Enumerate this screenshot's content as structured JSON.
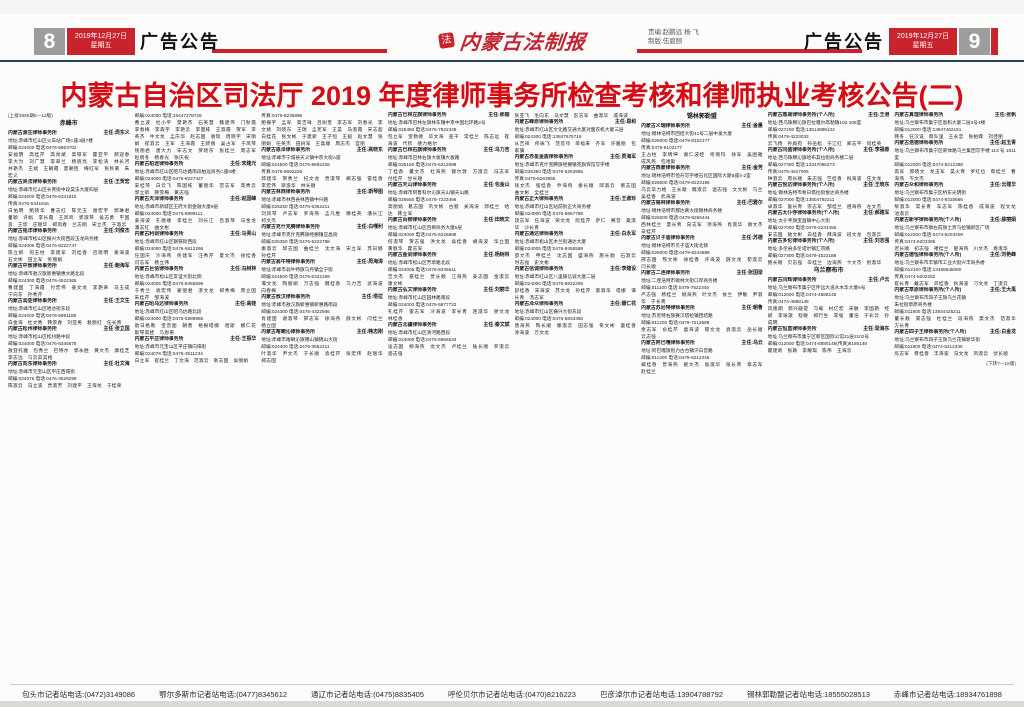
{
  "header": {
    "page_left": "8",
    "page_right": "9",
    "date_line1": "2019年12月27日",
    "date_line2": "星期五",
    "section_left": "广告公告",
    "section_right": "广告公告",
    "masthead": "内蒙古法制报",
    "seal_glyph": "法",
    "credit_line1": "责编:赵鹏远  杨  飞",
    "credit_line2": "制版:伍碧颐",
    "accent_red": "#c9232d",
    "rule_navy": "#21415f"
  },
  "title": "内蒙古自治区司法厅 2019 年度律师事务所检查考核和律师执业考核公告(二)",
  "body": {
    "columns": [
      {
        "blocks": [
          {
            "type": "note",
            "text": "(上接3866期5—12版)"
          },
          {
            "type": "city",
            "text": "赤峰市"
          },
          {
            "type": "firm",
            "name": "内蒙古源生律师事务所",
            "director": "主任:周东义",
            "lines": [
              "地址:赤峰市红山区火车站广场C座4层7楼",
              "邮编:024000  电话:0476-5853702"
            ],
            "names": "安福明 高桂芹 高尚斌 高铁军 霍亚平 郝迎春 李大为 刘广慧 李翠兰 杨晓亮 李松涛 林长河 井艳杰 王斌 王朝霞 夏朝臣 梅红军 张秋菊 朱宏义"
          },
          {
            "type": "firm",
            "name": "内蒙古昊法律师事务所",
            "director": "主任:王贺宏",
            "lines": [
              "地址:赤峰市红山区长青街中段昊法大厦四层",
              "邮编:024000  电话:0476-5341816",
              "传真:0476-5341816"
            ],
            "names": "白佑明 鲍晓华 曹志红 陈元玉 谢宏宇 郭琳君 董颖 许娟 李长霞 王凤鸣 郭淑琴 侯志勇 平国良 王欣 庄丽华 郑凤春 兰志刚 宋立杰 于淑云"
          },
          {
            "type": "firm",
            "name": "内蒙古铭洋律师事务所",
            "director": "主任:刘俊杰",
            "lines": [
              "地址:赤峰市松山区振兴大街西段玉龙商务楼",
              "邮编:024005  电话:0476-8222747"
            ],
            "names": "陈立新 何玉柱 李建军 刘桂香 吕晓明 秦海波 石文彬 田立军 佟丽娟"
          },
          {
            "type": "firm",
            "name": "内蒙古中敖律师事务所",
            "director": "主任:鲍海军",
            "lines": [
              "地址:赤峰市敖汉旗新惠镇惠文路北段",
              "邮编:024300  电话:0476-4522365"
            ],
            "names": "曹建国 丁海霞 付宏伟 姜文龙 李艳荣 马玉成 宁向东 孙秀芹"
          },
          {
            "type": "firm",
            "name": "内蒙古润亚律师事务所",
            "director": "主任:王文生",
            "lines": [
              "地址:赤峰市红山区哈达街东段",
              "邮编:024000  电话:0476-5891188"
            ],
            "names": "白金海 杜文秀 韩景春 刘亚男 裴丽红 任长青"
          },
          {
            "type": "firm",
            "name": "内蒙古松州律师事务所",
            "director": "主任:张立国",
            "lines": [
              "地址:赤峰市松山区松州路中段",
              "邮编:024000  电话:0476-8345678"
            ],
            "names": "敖登托雅 包秀兰 巴特尔 郭永胜 黄文杰 康桂芝 李志远 乌云其其格"
          },
          {
            "type": "firm",
            "name": "内蒙古向东律师事务所",
            "director": "主任:杜文海",
            "lines": [
              "地址:赤峰市元宝山区平庄西城街",
              "邮编:024076  电话:0476-3529299"
            ],
            "names": "陈淑云 冯立波 贾淑芳 刘建平 王海龙 于桂荣"
          }
        ]
      },
      {
        "blocks": [
          {
            "type": "firm",
            "name": "",
            "director": "",
            "lines": [
              "邮编:024000  电话:15447278729"
            ],
            "names": "曹立波 杜小平 樊艳杰 石英慧 魏建伟 门秋霞 李春梅 李森宇 李艳云 李国栋 王淑霞 贺军 李英杰 牛文龙 孟庆华 赵志国 谢琰 周晓宇 宋丽娟 崔淑云 王军 王海霞 王晓丽 吴占军 于凤琴 钱丽君 唐大力 宋志文 贺晓东 张桂兰 周志军 赵晓冬 杨春光 张庆祝"
          },
          {
            "type": "firm",
            "name": "内蒙古柏远律师事务所",
            "director": "主任:宋建元",
            "lines": [
              "地址:赤峰市红山区昭乌达路南段柏远商务C座6楼",
              "邮编:024000  电话:0476-8227427"
            ],
            "names": "安桂琴 白云飞 陈国栋 董丽华 范志军 高秀云 郭立新 韩雪梅 黄志强"
          },
          {
            "type": "firm",
            "name": "内蒙古天泽律师事务所",
            "director": "主任:赵国峰",
            "lines": [
              "地址:赤峰市新城区王府大街金融大厦9层",
              "邮编:024000  电话:0476-8899111"
            ],
            "names": "姜海波 孔德顺 李桂兰 刘长江 吕淑琴 马金龙 潘志红 曲文彬"
          },
          {
            "type": "firm",
            "name": "内蒙古利剑律师事务所",
            "director": "主任:马青山",
            "lines": [
              "地址:赤峰市红山区钢铁街西段",
              "邮编:024000  电话:0476-5812266"
            ],
            "names": "任国庆 沙海燕 佟建军 汪秀芹 夏文杰 徐桂香 闫志军 杨立伟"
          },
          {
            "type": "firm",
            "name": "内蒙古巨信律师事务所",
            "director": "主任:冯树林",
            "lines": [
              "地址:赤峰市松山区友谊大街北侧",
              "邮编:024005  电话:0476-8455599"
            ],
            "names": "于秀兰 袁宏伟 翟丽君 湛文龙 郑秀梅 周立国 朱桂芹 邹海波"
          },
          {
            "type": "firm",
            "name": "内蒙古昭乌达律师事务所",
            "director": "主任:高娃",
            "lines": [
              "地址:赤峰市红山区昭乌达路北段",
              "邮编:024000  电话:0476-5889966"
            ],
            "names": "敖日格勒 宝音图 朝鲁 格根塔娜 哈斯 娜仁花 斯琴高娃 乌恩奇"
          },
          {
            "type": "firm",
            "name": "内蒙古平庄律师事务所",
            "director": "主任:王振华",
            "lines": [
              "地址:赤峰市元宝山区平庄镇向阳街",
              "邮编:024076  电话:0476-3511234"
            ],
            "names": "白立军 崔桂兰 丁文海 范淑云 耿志国 侯丽娟"
          }
        ]
      },
      {
        "blocks": [
          {
            "type": "firm",
            "name": "",
            "director": "",
            "lines": [
              "传真:0476-8235896"
            ],
            "names": "鲍振宇 孟军 高吉祥 吕树奎 李志军 刘春光 李文斌 刘晓东 王瑞 孟宪军 王昊 马淑霞 宋志超 白桂花 张文彬 于建新 王子恒 王毅 赵文慧 张丽娟 任英杰 田树军 王喜顺 周志杰 宫丽"
          },
          {
            "type": "firm",
            "name": "内蒙古恩泽律师事务所",
            "director": "主任:高晓东",
            "lines": [
              "地址:赤峰市宁城县天义镇中京大街A座",
              "邮编:024500  电话:0476-8692226",
              "传真:0476-8692226"
            ],
            "names": "郭建华 贺秀兰 纪文龙 贾淑琴 阚志强 雷桂香 李宏伟 梁淑华 林长顺"
          },
          {
            "type": "firm",
            "name": "内蒙古林西律师事务所",
            "director": "主任:斯琴图",
            "lines": [
              "地址:赤峰市林西县林西镇中兴路",
              "邮编:025250  电话:0476-5362211"
            ],
            "names": "刘凤琴 卢志军 罗海燕 孟凡胜 穆桂英 潘长江 祁文杰"
          },
          {
            "type": "firm",
            "name": "内蒙古克什克腾律师事务所",
            "director": "主任:白嘎利",
            "lines": [
              "地址:赤峰市克什克腾旗经棚镇应昌街",
              "邮编:025350  电话:0476-5222788"
            ],
            "names": "秦淑云 邱志国 曲桂兰 沈文海 宋立军 苏日娜 孙桂芹"
          },
          {
            "type": "firm",
            "name": "内蒙古翁牛特律师事务所",
            "director": "主任:周海涛",
            "lines": [
              "地址:赤峰市翁牛特旗乌丹镇全宁街",
              "邮编:024500  电话:0476-6322199"
            ],
            "names": "谭文龙 陶丽娟 万志强 魏桂香 乌力吉 武海波 向春梅"
          },
          {
            "type": "firm",
            "name": "内蒙古敖汉律师事务所",
            "director": "主任:塔拉",
            "lines": [
              "地址:赤峰市敖汉旗新惠镇新惠路南段",
              "邮编:024300  电话:0476-4322566"
            ],
            "names": "肖建国 谢淑琴 邢志军 徐海燕 薛文彬 闫桂兰 杨立国"
          },
          {
            "type": "firm",
            "name": "内蒙古喀喇沁律师事务所",
            "director": "主任:韩志刚",
            "lines": [
              "地址:赤峰市喀喇沁旗锦山镇锦山大街",
              "邮编:024400  电话:0476-3552211"
            ],
            "names": "叶淑华 尹文杰 于长顺 袁桂芹 张宏伟 赵丽华 郑志国"
          }
        ]
      },
      {
        "blocks": [
          {
            "type": "firm",
            "name": "内蒙古巴林左旗律师事务所",
            "director": "主任:那顺",
            "lines": [
              "地址:赤峰市巴林左旗林东镇中京中国北环路2号",
              "邮编:025450  电话:0476-7822345"
            ],
            "names": "包立军 宝勒德 毕文海 查干 常桂兰 陈志远 崔海波 代钦 德力格尔"
          },
          {
            "type": "firm",
            "name": "内蒙古巴林右旗律师事务所",
            "director": "主任:乌力吉",
            "lines": [
              "地址:赤峰市巴林右旗大板镇大板路",
              "邮编:025150  电话:0476-6212688"
            ],
            "names": "丁桂香 董文杰 杜海燕 额尔敦 方淑云 冯志军 付桂芹 甘长顺"
          },
          {
            "type": "firm",
            "name": "内蒙古天山律师事务所",
            "director": "主任:包金山",
            "lines": [
              "地址:赤峰市阿鲁科尔沁旗天山镇天山路",
              "邮编:025550  电话:0476-7222456"
            ],
            "names": "高丽娟 葛志国 巩文彬 古丽 关海涛 郭桂兰 哈达 韩立军"
          },
          {
            "type": "firm",
            "name": "内蒙古百柳律师事务所",
            "director": "主任:田晓文",
            "lines": [
              "地址:赤峰市红山区百柳商务大厦5层",
              "邮编:024000  电话:0476-5226888"
            ],
            "names": "何淑琴 贺志强 洪文龙 侯桂香 胡海波 华立国 黄丽华 霍志军"
          },
          {
            "type": "firm",
            "name": "内蒙古金剑律师事务所",
            "director": "主任:杨树林",
            "lines": [
              "地址:赤峰市松山区芳草路北段",
              "邮编:024005  电话:0476-8336611"
            ],
            "names": "吉文杰 嘉桂兰 贾长顺 江海燕 姜志国 金淑云 康文彬"
          },
          {
            "type": "firm",
            "name": "内蒙古弘文律师事务所",
            "director": "主任:刘丽华",
            "lines": [
              "地址:赤峰市红山区园林路南段",
              "邮编:024000  电话:0476-5877722"
            ],
            "names": "孔桂芹 雷志军 冷海波 李长青 连淑华 廖文龙 林桂香"
          },
          {
            "type": "firm",
            "name": "内蒙古北疆律师事务所",
            "director": "主任:秦文斌",
            "lines": [
              "地址:赤峰市红山区清河路西段",
              "邮编:024000  电话:0476-5866633"
            ],
            "names": "凌志国 柳海燕 龙文杰 卢桂兰 陆长顺 罗淑云 骆志强"
          }
        ]
      },
      {
        "blocks": [
          {
            "type": "firm",
            "name": "",
            "director": "",
            "lines": [],
            "names": "张亚飞 毛向东 马文慧 彭志军 曲淑华 戚海波"
          },
          {
            "type": "firm",
            "name": "内蒙古峰原律师事务所",
            "director": "主任:恩和",
            "lines": [
              "地址:赤峰市红山区文化路交通大厦对面农机大厦三层",
              "邮编:024300  电话:13847676716"
            ],
            "names": "从吉祥 佟咏飞 范菩제 单福来 齐军 许雅丽 包家骥"
          },
          {
            "type": "firm",
            "name": "内蒙古赤星金盾律师事务所",
            "director": "主任:贾海军",
            "lines": [
              "地址:赤峰市克什克腾旗经棚镇克旗宾馆写字楼",
              "邮编:025350  电话:0476-5263955",
              "传真:0476-5263955"
            ],
            "names": "钱文杰 强桂香 乔海燕 秦长顺 邱淑云 裘志国 曲文彬 全桂兰"
          },
          {
            "type": "firm",
            "name": "内蒙古正大律师事务所",
            "director": "主任:王淑珍",
            "lines": [
              "地址:赤峰市红山区站前街正大商务楼",
              "邮编:024000  电话:0476-5867788"
            ],
            "names": "饶志军 任海波 荣文龙 阮桂芹 萨仁 赛音 桑淑华 沙长青"
          },
          {
            "type": "firm",
            "name": "内蒙古通达律师事务所",
            "director": "主任:白永军",
            "lines": [
              "地址:赤峰市松山区木兰街通达大厦",
              "邮编:024005  电话:0476-8455588"
            ],
            "names": "邵文杰 申桂兰 沈志国 盛海燕 施长顺 石淑云 时志强 史文彬"
          },
          {
            "type": "firm",
            "name": "内蒙古信诚律师事务所",
            "director": "主任:李建设",
            "lines": [
              "地址:赤峰市红山区八里铺信诚大厦二层",
              "邮编:024000  电话:0476-5822299"
            ],
            "names": "舒桂香 宋海波 苏文龙 孙桂芹 索淑华 塔娜 谭长青 汤志军"
          },
          {
            "type": "firm",
            "name": "内蒙古泽众律师事务所",
            "director": "主任:娜仁花",
            "lines": [
              "地址:赤峰市红山区振兴大街东段",
              "邮编:024000  电话:0476-5833366"
            ],
            "names": "唐海燕 陶长顺 滕淑云 田志强 佟文彬 童桂香 涂海波 万文龙"
          }
        ]
      },
      {
        "blocks": [
          {
            "type": "city",
            "text": "锡林郭勒盟"
          },
          {
            "type": "firm",
            "name": "内蒙古义瑞律师事务所",
            "director": "主任:金惠",
            "lines": [
              "地址:锡林浩特市团结大街41号二层中发大厦",
              "邮编:026000  电话:0479-8102177",
              "传真:0479-8102177"
            ],
            "names": "王占柱 李炳坤 谢仁波娃 佟丽玛 徐军 吴图雅 成风燕 包哈斯"
          },
          {
            "type": "firm",
            "name": "内蒙古西蒙律师事务所",
            "director": "主任:金芳",
            "lines": [
              "地址:锡林浩特市恒升写字楼石化区国际大厦B座4-2室",
              "邮编:026000  电话:0479-8223186"
            ],
            "names": "乌云毕力格 王长顺 魏淑云 温志强 文文彬 乌兰 吴桂香 武海波"
          },
          {
            "type": "firm",
            "name": "内蒙古锡林律师事务所",
            "director": "主任:巴雅尔",
            "lines": [
              "地址:锡林浩特市那达慕大街锡林商务楼",
              "邮编:026000  电话:0479-8266444"
            ],
            "names": "西林桂兰 夏长青 向志军 项海燕 肖淑华 谢文杰 辛桂芹"
          },
          {
            "type": "firm",
            "name": "内蒙古贝子庙律师事务所",
            "director": "主任:苏德",
            "lines": [
              "地址:锡林浩特市贝子庙大街北侧",
              "邮编:026000  电话:0479-8244888"
            ],
            "names": "邢志国 熊文彬 徐桂香 许海波 薛文龙 荀淑云 闫长顺"
          },
          {
            "type": "firm",
            "name": "内蒙古二连律师事务所",
            "director": "主任:张国梁",
            "lines": [
              "地址:二连浩特市锡林大街口岸商务楼",
              "邮编:011100  电话:0479-7522345"
            ],
            "names": "严志强 杨桂兰 姚海燕 叶文杰 依兰 伊敏 尹淑华 于长青"
          },
          {
            "type": "firm",
            "name": "内蒙古苏尼特律师事务所",
            "director": "主任:朝鲁",
            "lines": [
              "地址:苏尼特右旗赛汉塔拉镇团结路",
              "邮编:011200  电话:0479-7212688"
            ],
            "names": "余志军 俞桂芹 虞海波 郁文龙 袁淑云 岳长顺 云志强"
          },
          {
            "type": "firm",
            "name": "内蒙古阿巴嘎律师事务所",
            "director": "主任:乌云",
            "lines": [
              "地址:阿巴嘎旗别力古台镇汗白音路",
              "邮编:011400  电话:0479-6212345"
            ],
            "names": "臧桂香 曾海燕 翟文杰 詹淑华 张长青 章志军 赵桂兰"
          }
        ]
      },
      {
        "blocks": [
          {
            "type": "firm",
            "name": "内蒙古鼎晟律师事务所(个人所)",
            "director": "主任:王港",
            "lines": [
              "地址:西乌珠穆沁旗巴拉嘎尔高勒镇102-105室",
              "邮编:027200  电话:13514896132",
              "传真:0479-4223033"
            ],
            "names": "云飞扬 孙殿有 孙岳松 于江红 郑志平 何桂英"
          },
          {
            "type": "firm",
            "name": "内蒙古同盛律师事务所(个人所)",
            "director": "主任:李福春",
            "lines": [
              "地址:西乌珠穆沁旗哈布其拉街商务楼二层",
              "邮编:027300  电话:13347065273",
              "传真:0479-4627005"
            ],
            "names": "钟淑云 周长顺 朱志强 竺桂香 祝海波 庄文龙"
          },
          {
            "type": "firm",
            "name": "内蒙古悦达律师事务所(个人所)",
            "director": "主任:王晓东",
            "lines": [
              "地址:锡林浩特市希日塔拉街悦达商务楼",
              "邮编:027000  电话:13804792211"
            ],
            "names": "卓淑华 訾长青 宗志军 邹桂兰 祖海燕 左文杰"
          },
          {
            "type": "firm",
            "name": "内蒙古太仆寺律师事务所(个人所)",
            "director": "主任:郝建军",
            "lines": [
              "地址:太仆寺旗宝昌镇中心大街",
              "邮编:027000  电话:0479-2233456"
            ],
            "names": "安志国 敖文彬 白桂香 拜海波 班文龙 包淑云"
          },
          {
            "type": "firm",
            "name": "内蒙古多伦律师事务所(个人所)",
            "director": "主任:刘志强",
            "lines": [
              "地址:多伦县多伦诺尔镇汇宗路",
              "邮编:027300  电话:0479-4522188"
            ],
            "names": "鲍长顺 贝志强 毕桂兰 边海燕 卞文杰 别淑华"
          },
          {
            "type": "city",
            "text": "乌兰察布市"
          },
          {
            "type": "firm",
            "name": "内蒙古同辉律师事务所",
            "director": "主任:卢云",
            "lines": [
              "地址:乌兰察布市集宁区怀远大道水木华大厦6号",
              "邮编:012000  电话:0474-4888148",
              "传真:0474-4888148"
            ],
            "names": "风隆翔 郭兴跋提 乌载 村亿宏 宋敏 李国艳 经斌 李咏歌 程敏 郑行生 李强 董浩 于彩云 孙成明"
          },
          {
            "type": "firm",
            "name": "内蒙古恒直律师事务所",
            "director": "主任:梁海东",
            "lines": [
              "地址:乌兰察布市集宁区新区国际公馆21层2102号",
              "邮编:012000  电话:0474-8880148(传真)8180148"
            ],
            "names": "霍建新 张颖 李耀琪 陈伟 王海云"
          }
        ]
      },
      {
        "blocks": [
          {
            "type": "firm",
            "name": "内蒙古真理律师事务所",
            "director": "主任:张帆",
            "lines": [
              "地址:乌兰察布市集宁区恩和大厦二层3号4楼",
              "邮编:012000  电话:13847462151"
            ],
            "names": "韩冬 任汉设 蔡队里 王永忠 张柏霖 刘佳丽"
          },
          {
            "type": "firm",
            "name": "内蒙古浩德律师事务所",
            "director": "主任:赵玉青",
            "lines": [
              "地址:乌兰察布市集宁区新体路乌兰集团写字楼 113 号 1811 室",
              "邮编:012000  电话:0474-8212388"
            ],
            "names": "高军 郭晓文 龙玉军 昊火青 罗红位 蔡桂兰 曹海燕 岑文杰"
          },
          {
            "type": "firm",
            "name": "内蒙古众和律师事务所",
            "director": "主任:云建华",
            "lines": [
              "地址:乌兰察布市集宁区桥东光明街",
              "邮编:012000  电话:0474-8325666"
            ],
            "names": "柴淑华 常长青 车志军 陈桂香 成海波 程文龙 池淑云"
          },
          {
            "type": "firm",
            "name": "内蒙古新宇律师事务所(个人所)",
            "director": "主任:薛丽娟",
            "lines": [
              "地址:乌兰察布市察右前旗土贵乌拉镇新区广场",
              "邮编:012200  电话:0474-6203209",
              "传真:0474-6203365"
            ],
            "names": "迟长顺 初志强 褚桂兰 楚海燕 川文杰 春淑华"
          },
          {
            "type": "firm",
            "name": "内蒙古德恒律师事务所(个人所)",
            "director": "主任:刘艳峰",
            "lines": [
              "地址:乌兰察布市丰镇市工业大街兴丰商务楼",
              "邮编:012100  电话:13488545080",
              "传真:0474-5202252"
            ],
            "names": "崔长青 戴志军 邓桂香 狄海波 刁文龙 丁淑云"
          },
          {
            "type": "firm",
            "name": "内蒙古草原律师事务所(个人所)",
            "director": "主任:王大禹",
            "lines": [
              "地址:乌兰察布市四子王旗乌兰花镇",
              "朱拉街草原商务楼",
              "邮编:011800  电话:13934425211"
            ],
            "names": "董长顺 窦志强 杜桂兰 段海燕 樊文杰 范淑华 方长青"
          },
          {
            "type": "firm",
            "name": "内蒙古四子王律师事务所(个人所)",
            "director": "主任:白金龙",
            "lines": [
              "地址:乌兰察布市四子王旗乌兰花镇新华街",
              "邮编:011800  电话:0474-5212345"
            ],
            "names": "房志军 费桂香 丰海波 冯文龙 凤淑云 伏长顺"
          },
          {
            "type": "note-end",
            "text": "(下转7—16版)"
          }
        ]
      }
    ]
  },
  "footer": {
    "items": [
      "包头市记者站电话:(0472)3149086",
      "鄂尔多斯市记者站电话:(0477)8345612",
      "通辽市记者站电话:(0475)8835405",
      "呼伦贝尔市记者站电话:(0470)8216223",
      "巴彦淖尔市记者站电话:13904788792",
      "锡林郭勒盟记者站电话:18555028513",
      "赤峰市记者站电话:18934761898"
    ]
  }
}
